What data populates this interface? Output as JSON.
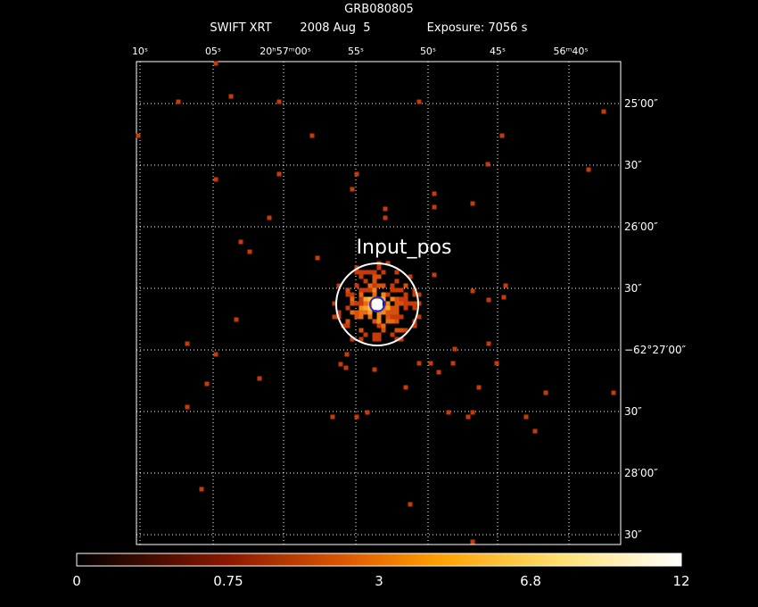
{
  "header": {
    "title": "GRB080805",
    "instrument": "SWIFT XRT",
    "date": "2008 Aug  5",
    "exposure": "Exposure: 7056 s"
  },
  "top_axis_labels": [
    "10ˢ",
    "05ˢ",
    "20ʰ57ᵐ00ˢ",
    "55ˢ",
    "50ˢ",
    "45ˢ",
    "56ᵐ40ˢ"
  ],
  "right_axis_labels": [
    "25′00″",
    "30″",
    "26′00″",
    "30″",
    "−62°27′00″",
    "30″",
    "28′00″",
    "30″"
  ],
  "annotation": "Input_pos",
  "colorbar_labels": [
    0,
    0.75,
    3,
    6.8,
    12
  ]
}
